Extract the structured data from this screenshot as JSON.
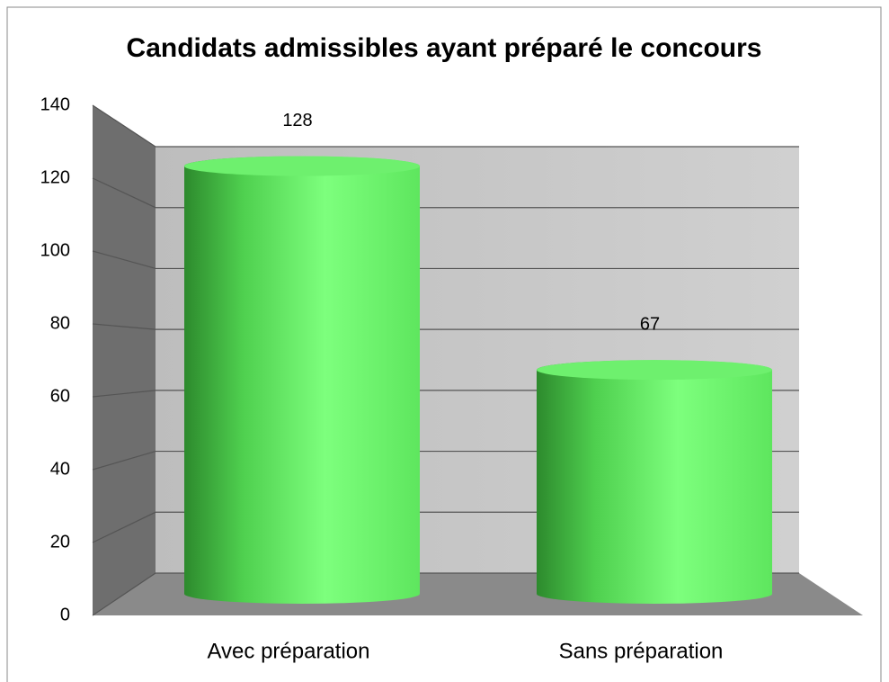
{
  "chart_data": {
    "type": "bar3d",
    "title": "Candidats admissibles ayant préparé le concours",
    "categories": [
      "Avec préparation",
      "Sans préparation"
    ],
    "values": [
      128,
      67
    ],
    "color": "#5ee65e",
    "ylim": [
      0,
      140
    ],
    "yticks": [
      0,
      20,
      40,
      60,
      80,
      100,
      120,
      140
    ],
    "grid": true
  }
}
